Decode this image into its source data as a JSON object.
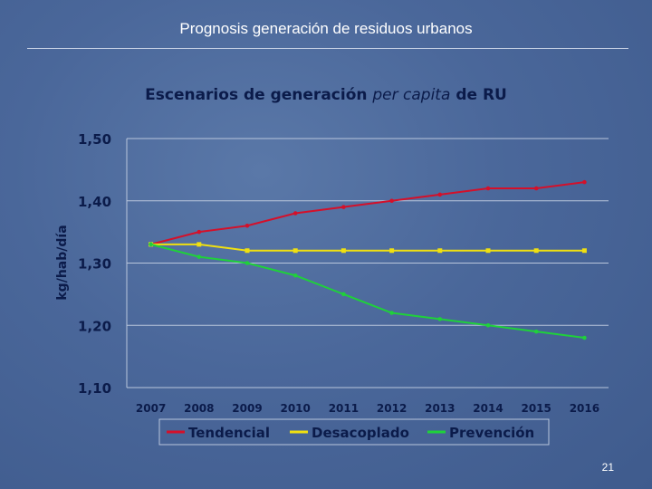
{
  "slide": {
    "title": "Prognosis generación de residuos urbanos",
    "page_number": "21"
  },
  "colors": {
    "text": "#0b1b4a",
    "grid": "#b9c6dc",
    "series": [
      "#d4102a",
      "#f0e010",
      "#1fd13a"
    ]
  },
  "chart_data": {
    "type": "line",
    "title_parts": [
      "Escenarios de generación ",
      "per capita",
      " de RU"
    ],
    "ylabel": "kg/hab/día",
    "xlabel": "",
    "ylim": [
      1.1,
      1.5
    ],
    "yticks": [
      1.1,
      1.2,
      1.3,
      1.4,
      1.5
    ],
    "ytick_labels": [
      "1,10",
      "1,20",
      "1,30",
      "1,40",
      "1,50"
    ],
    "categories": [
      "2007",
      "2008",
      "2009",
      "2010",
      "2011",
      "2012",
      "2013",
      "2014",
      "2015",
      "2016"
    ],
    "grid": true,
    "legend_position": "bottom",
    "series": [
      {
        "name": "Tendencial",
        "values": [
          1.33,
          1.35,
          1.36,
          1.38,
          1.39,
          1.4,
          1.41,
          1.42,
          1.42,
          1.43
        ]
      },
      {
        "name": "Desacoplado",
        "values": [
          1.33,
          1.33,
          1.32,
          1.32,
          1.32,
          1.32,
          1.32,
          1.32,
          1.32,
          1.32
        ]
      },
      {
        "name": "Prevención",
        "values": [
          1.33,
          1.31,
          1.3,
          1.28,
          1.25,
          1.22,
          1.21,
          1.2,
          1.19,
          1.18
        ]
      }
    ]
  }
}
